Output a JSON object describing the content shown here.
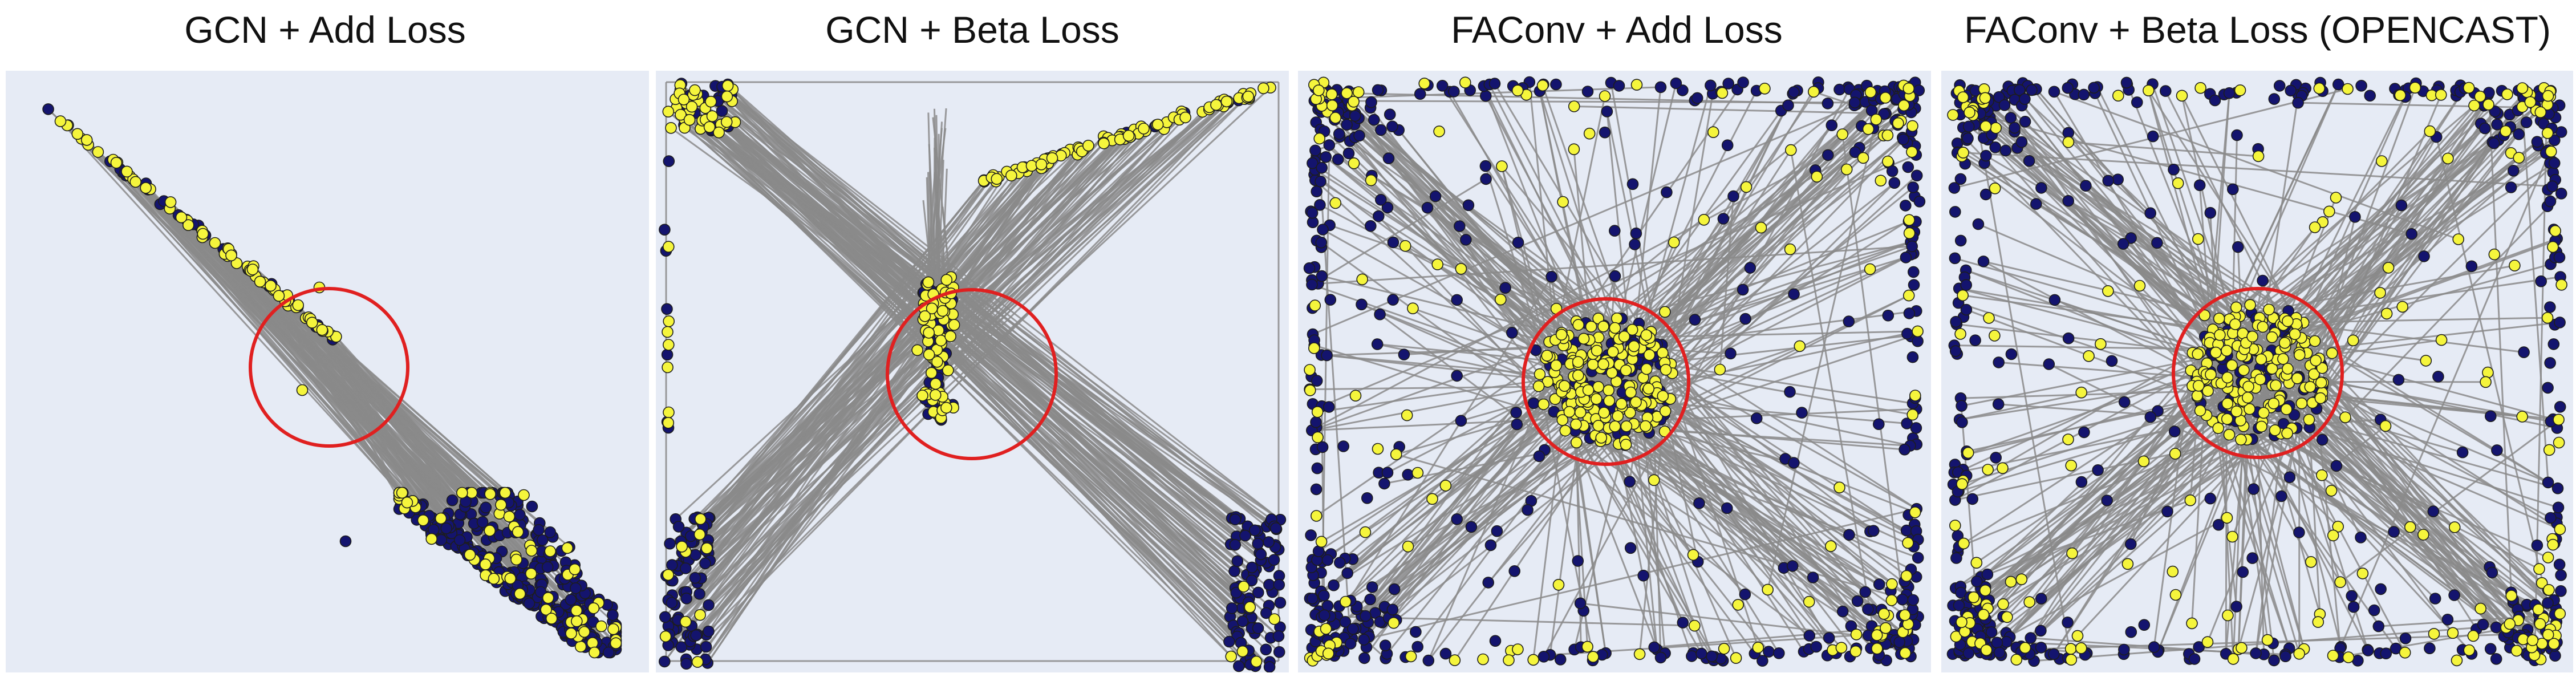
{
  "figure": {
    "panels": [
      {
        "title": "GCN + Add Loss",
        "layout": "diagonal-collapse"
      },
      {
        "title": "GCN + Beta Loss",
        "layout": "x-cross"
      },
      {
        "title": "FAConv + Add Loss",
        "layout": "spread-square"
      },
      {
        "title": "FAConv + Beta Loss (OPENCAST)",
        "layout": "spread-square-dense"
      }
    ],
    "colors": {
      "plot_background": "#e6ebf5",
      "edge": "#8a8a8a",
      "node_dark": "#14146e",
      "node_light": "#f5f53c",
      "node_outline": "#1d1d1d",
      "highlight_circle": "#e02020"
    }
  }
}
